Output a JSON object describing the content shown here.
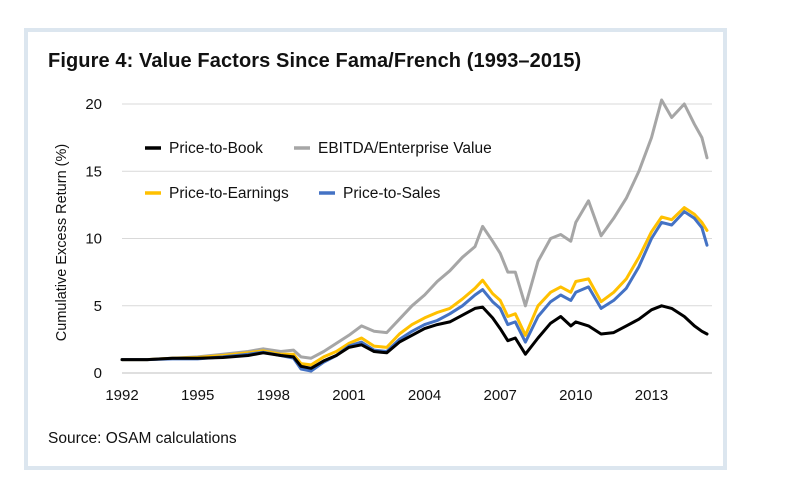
{
  "title": "Figure 4: Value Factors Since Fama/French (1993–2015)",
  "source": "Source: OSAM calculations",
  "chart_data": {
    "type": "line",
    "title": "Figure 4: Value Factors Since Fama/French (1993–2015)",
    "xlabel": "",
    "ylabel": "Cumulative Excess Return (%)",
    "xlim": [
      1992,
      2015.4
    ],
    "ylim": [
      0,
      20
    ],
    "xticks": [
      "1992",
      "1995",
      "1998",
      "2001",
      "2004",
      "2007",
      "2010",
      "2013"
    ],
    "yticks": [
      "0",
      "5",
      "10",
      "15",
      "20"
    ],
    "grid": "horizontal",
    "legend_position": "top-left",
    "series": [
      {
        "name": "Price-to-Book",
        "color": "#000000",
        "points": [
          [
            1992.0,
            1.0
          ],
          [
            1993.0,
            1.0
          ],
          [
            1994.0,
            1.1
          ],
          [
            1995.0,
            1.1
          ],
          [
            1996.0,
            1.15
          ],
          [
            1997.0,
            1.3
          ],
          [
            1997.6,
            1.5
          ],
          [
            1998.3,
            1.3
          ],
          [
            1998.8,
            1.2
          ],
          [
            1999.1,
            0.5
          ],
          [
            1999.5,
            0.35
          ],
          [
            2000.0,
            0.9
          ],
          [
            2000.5,
            1.3
          ],
          [
            2001.0,
            1.9
          ],
          [
            2001.5,
            2.1
          ],
          [
            2002.0,
            1.6
          ],
          [
            2002.5,
            1.5
          ],
          [
            2003.0,
            2.3
          ],
          [
            2003.5,
            2.8
          ],
          [
            2004.0,
            3.3
          ],
          [
            2004.5,
            3.6
          ],
          [
            2005.0,
            3.8
          ],
          [
            2005.5,
            4.3
          ],
          [
            2006.0,
            4.8
          ],
          [
            2006.3,
            4.9
          ],
          [
            2006.7,
            4.1
          ],
          [
            2007.0,
            3.3
          ],
          [
            2007.3,
            2.4
          ],
          [
            2007.6,
            2.6
          ],
          [
            2008.0,
            1.4
          ],
          [
            2008.5,
            2.6
          ],
          [
            2009.0,
            3.7
          ],
          [
            2009.4,
            4.2
          ],
          [
            2009.8,
            3.5
          ],
          [
            2010.0,
            3.8
          ],
          [
            2010.5,
            3.5
          ],
          [
            2011.0,
            2.9
          ],
          [
            2011.5,
            3.0
          ],
          [
            2012.0,
            3.5
          ],
          [
            2012.5,
            4.0
          ],
          [
            2013.0,
            4.7
          ],
          [
            2013.4,
            5.0
          ],
          [
            2013.8,
            4.8
          ],
          [
            2014.3,
            4.2
          ],
          [
            2014.7,
            3.5
          ],
          [
            2015.0,
            3.1
          ],
          [
            2015.2,
            2.9
          ]
        ]
      },
      {
        "name": "EBITDA/Enterprise Value",
        "color": "#a6a6a6",
        "points": [
          [
            1992.0,
            1.0
          ],
          [
            1993.0,
            1.0
          ],
          [
            1994.0,
            1.1
          ],
          [
            1995.0,
            1.2
          ],
          [
            1996.0,
            1.4
          ],
          [
            1997.0,
            1.6
          ],
          [
            1997.6,
            1.8
          ],
          [
            1998.3,
            1.6
          ],
          [
            1998.8,
            1.7
          ],
          [
            1999.1,
            1.2
          ],
          [
            1999.5,
            1.1
          ],
          [
            2000.0,
            1.6
          ],
          [
            2000.5,
            2.2
          ],
          [
            2001.0,
            2.8
          ],
          [
            2001.5,
            3.5
          ],
          [
            2002.0,
            3.1
          ],
          [
            2002.5,
            3.0
          ],
          [
            2003.0,
            4.0
          ],
          [
            2003.5,
            5.0
          ],
          [
            2004.0,
            5.8
          ],
          [
            2004.5,
            6.8
          ],
          [
            2005.0,
            7.6
          ],
          [
            2005.5,
            8.6
          ],
          [
            2006.0,
            9.4
          ],
          [
            2006.3,
            10.9
          ],
          [
            2006.7,
            9.8
          ],
          [
            2007.0,
            8.9
          ],
          [
            2007.3,
            7.5
          ],
          [
            2007.6,
            7.5
          ],
          [
            2008.0,
            5.0
          ],
          [
            2008.5,
            8.3
          ],
          [
            2009.0,
            10.0
          ],
          [
            2009.4,
            10.3
          ],
          [
            2009.8,
            9.8
          ],
          [
            2010.0,
            11.2
          ],
          [
            2010.5,
            12.8
          ],
          [
            2011.0,
            10.2
          ],
          [
            2011.5,
            11.5
          ],
          [
            2012.0,
            13.0
          ],
          [
            2012.5,
            15.0
          ],
          [
            2013.0,
            17.5
          ],
          [
            2013.4,
            20.3
          ],
          [
            2013.8,
            19.0
          ],
          [
            2014.3,
            20.0
          ],
          [
            2014.7,
            18.5
          ],
          [
            2015.0,
            17.5
          ],
          [
            2015.2,
            16.0
          ]
        ]
      },
      {
        "name": "Price-to-Earnings",
        "color": "#ffc000",
        "points": [
          [
            1992.0,
            1.0
          ],
          [
            1993.0,
            1.0
          ],
          [
            1994.0,
            1.1
          ],
          [
            1995.0,
            1.15
          ],
          [
            1996.0,
            1.3
          ],
          [
            1997.0,
            1.5
          ],
          [
            1997.6,
            1.65
          ],
          [
            1998.3,
            1.4
          ],
          [
            1998.8,
            1.4
          ],
          [
            1999.1,
            0.7
          ],
          [
            1999.5,
            0.6
          ],
          [
            2000.0,
            1.2
          ],
          [
            2000.5,
            1.6
          ],
          [
            2001.0,
            2.2
          ],
          [
            2001.5,
            2.6
          ],
          [
            2002.0,
            2.0
          ],
          [
            2002.5,
            1.9
          ],
          [
            2003.0,
            2.9
          ],
          [
            2003.5,
            3.6
          ],
          [
            2004.0,
            4.1
          ],
          [
            2004.5,
            4.5
          ],
          [
            2005.0,
            4.8
          ],
          [
            2005.5,
            5.5
          ],
          [
            2006.0,
            6.3
          ],
          [
            2006.3,
            6.9
          ],
          [
            2006.7,
            5.9
          ],
          [
            2007.0,
            5.4
          ],
          [
            2007.3,
            4.2
          ],
          [
            2007.6,
            4.4
          ],
          [
            2008.0,
            2.8
          ],
          [
            2008.5,
            5.0
          ],
          [
            2009.0,
            6.0
          ],
          [
            2009.4,
            6.4
          ],
          [
            2009.8,
            6.0
          ],
          [
            2010.0,
            6.8
          ],
          [
            2010.5,
            7.0
          ],
          [
            2011.0,
            5.3
          ],
          [
            2011.5,
            6.0
          ],
          [
            2012.0,
            7.0
          ],
          [
            2012.5,
            8.6
          ],
          [
            2013.0,
            10.5
          ],
          [
            2013.4,
            11.6
          ],
          [
            2013.8,
            11.4
          ],
          [
            2014.3,
            12.3
          ],
          [
            2014.7,
            11.8
          ],
          [
            2015.0,
            11.2
          ],
          [
            2015.2,
            10.6
          ]
        ]
      },
      {
        "name": "Price-to-Sales",
        "color": "#4472c4",
        "points": [
          [
            1992.0,
            1.0
          ],
          [
            1993.0,
            1.0
          ],
          [
            1994.0,
            1.05
          ],
          [
            1995.0,
            1.05
          ],
          [
            1996.0,
            1.2
          ],
          [
            1997.0,
            1.4
          ],
          [
            1997.6,
            1.55
          ],
          [
            1998.3,
            1.3
          ],
          [
            1998.8,
            1.1
          ],
          [
            1999.1,
            0.3
          ],
          [
            1999.5,
            0.15
          ],
          [
            2000.0,
            0.8
          ],
          [
            2000.5,
            1.3
          ],
          [
            2001.0,
            2.0
          ],
          [
            2001.5,
            2.3
          ],
          [
            2002.0,
            1.7
          ],
          [
            2002.5,
            1.6
          ],
          [
            2003.0,
            2.5
          ],
          [
            2003.5,
            3.1
          ],
          [
            2004.0,
            3.6
          ],
          [
            2004.5,
            3.9
          ],
          [
            2005.0,
            4.4
          ],
          [
            2005.5,
            5.0
          ],
          [
            2006.0,
            5.8
          ],
          [
            2006.3,
            6.2
          ],
          [
            2006.7,
            5.3
          ],
          [
            2007.0,
            4.8
          ],
          [
            2007.3,
            3.6
          ],
          [
            2007.6,
            3.8
          ],
          [
            2008.0,
            2.3
          ],
          [
            2008.5,
            4.2
          ],
          [
            2009.0,
            5.3
          ],
          [
            2009.4,
            5.8
          ],
          [
            2009.8,
            5.4
          ],
          [
            2010.0,
            6.0
          ],
          [
            2010.5,
            6.4
          ],
          [
            2011.0,
            4.8
          ],
          [
            2011.5,
            5.4
          ],
          [
            2012.0,
            6.3
          ],
          [
            2012.5,
            7.9
          ],
          [
            2013.0,
            10.0
          ],
          [
            2013.4,
            11.2
          ],
          [
            2013.8,
            11.0
          ],
          [
            2014.3,
            12.0
          ],
          [
            2014.7,
            11.5
          ],
          [
            2015.0,
            10.8
          ],
          [
            2015.2,
            9.5
          ]
        ]
      }
    ]
  }
}
